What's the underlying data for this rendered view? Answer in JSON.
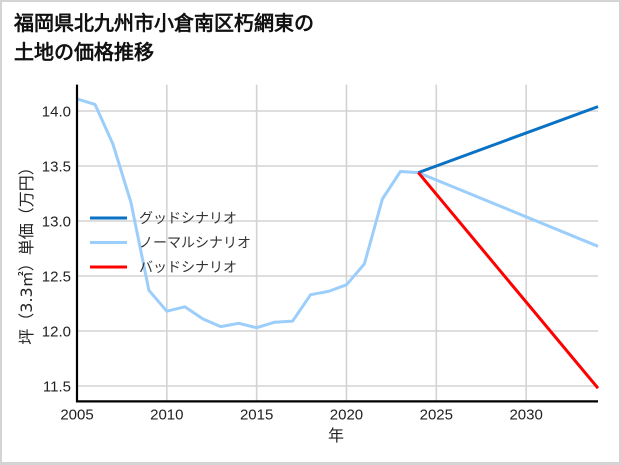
{
  "title": {
    "line1": "福岡県北九州市小倉南区朽網東の",
    "line2": "土地の価格推移"
  },
  "chart_data": {
    "type": "line",
    "title": "福岡県北九州市小倉南区朽網東の土地の価格推移",
    "xlabel": "年",
    "ylabel": "坪（3.3㎡）単価（万円）",
    "xlim": [
      2005,
      2034
    ],
    "ylim": [
      11.36,
      14.24
    ],
    "xticks": [
      2005,
      2010,
      2015,
      2020,
      2025,
      2030
    ],
    "xtick_labels": [
      "2005",
      "2010",
      "2015",
      "2020",
      "2025",
      "2030"
    ],
    "yticks": [
      11.5,
      12.0,
      12.5,
      13.0,
      13.5,
      14.0
    ],
    "ytick_labels": [
      "11.5",
      "12.0",
      "12.5",
      "13.0",
      "13.5",
      "14.0"
    ],
    "grid": true,
    "legend_position": "center-left",
    "series": [
      {
        "name": "グッドシナリオ",
        "color": "#0A72C4",
        "x": [
          2024,
          2034
        ],
        "y": [
          13.44,
          14.04
        ]
      },
      {
        "name": "ノーマルシナリオ",
        "color": "#9CCEFB",
        "x": [
          2005,
          2006,
          2007,
          2008,
          2009,
          2010,
          2011,
          2012,
          2013,
          2014,
          2015,
          2016,
          2017,
          2018,
          2019,
          2020,
          2021,
          2022,
          2023,
          2024,
          2034
        ],
        "y": [
          14.11,
          14.06,
          13.7,
          13.17,
          12.37,
          12.18,
          12.22,
          12.11,
          12.04,
          12.07,
          12.03,
          12.08,
          12.09,
          12.33,
          12.36,
          12.42,
          12.61,
          13.2,
          13.45,
          13.44,
          12.77
        ]
      },
      {
        "name": "バッドシナリオ",
        "color": "#FF0000",
        "x": [
          2024,
          2034
        ],
        "y": [
          13.44,
          11.48
        ]
      }
    ],
    "draw_order": [
      1,
      0,
      2
    ]
  }
}
